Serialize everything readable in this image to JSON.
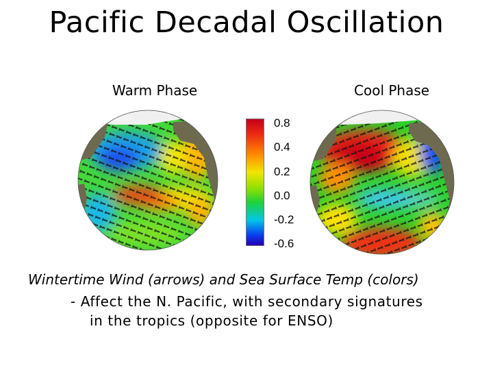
{
  "title": "Pacific Decadal Oscillation",
  "warm_label": "Warm Phase",
  "cool_label": "Cool Phase",
  "colorbar": {
    "ticks": [
      "0.8",
      "0.4",
      "0.2",
      "0.0",
      "-0.2",
      "-0.6"
    ],
    "colors_top_to_bottom": [
      "#c4001a",
      "#ee2a10",
      "#ff8a00",
      "#f2e600",
      "#8ee000",
      "#1ed23c",
      "#00c8e6",
      "#0a3cf0",
      "#2400b4"
    ]
  },
  "caption": {
    "line1": "Wintertime Wind (arrows) and Sea Surface Temp (colors)",
    "line2": "- Affect the N. Pacific, with secondary signatures",
    "line3": "in the tropics (opposite for ENSO)"
  },
  "colors": {
    "land": "#6e6a50",
    "ice": "#f2f2f2",
    "warm_anomaly": "#e8301a",
    "cool_anomaly": "#1a6ef0",
    "neutral": "#3ad23a"
  }
}
